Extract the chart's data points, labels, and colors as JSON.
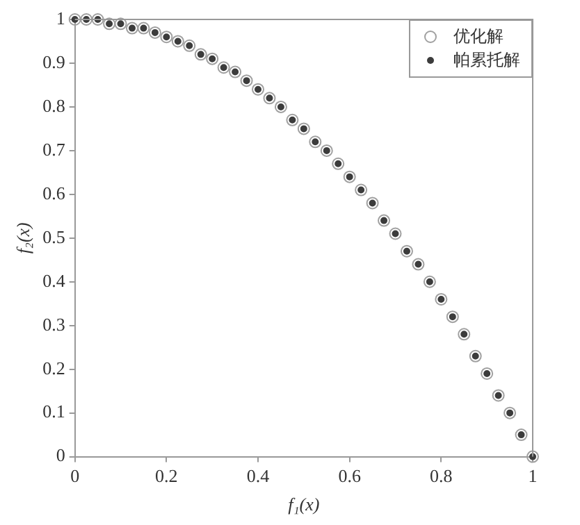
{
  "chart_data": {
    "type": "scatter",
    "xlabel": "f₁(x)",
    "ylabel": "f₂(x)",
    "x": [
      0,
      0.025,
      0.05,
      0.075,
      0.1,
      0.125,
      0.15,
      0.175,
      0.2,
      0.225,
      0.25,
      0.275,
      0.3,
      0.325,
      0.35,
      0.375,
      0.4,
      0.425,
      0.45,
      0.475,
      0.5,
      0.525,
      0.55,
      0.575,
      0.6,
      0.625,
      0.65,
      0.675,
      0.7,
      0.725,
      0.75,
      0.775,
      0.8,
      0.825,
      0.85,
      0.875,
      0.9,
      0.925,
      0.95,
      0.975,
      1
    ],
    "series": [
      {
        "name": "优化解",
        "color": "#a0a0a0",
        "marker": "circle",
        "values": [
          1,
          1,
          1,
          0.99,
          0.99,
          0.98,
          0.98,
          0.97,
          0.96,
          0.95,
          0.94,
          0.92,
          0.91,
          0.89,
          0.88,
          0.86,
          0.84,
          0.82,
          0.8,
          0.77,
          0.75,
          0.72,
          0.7,
          0.67,
          0.64,
          0.61,
          0.58,
          0.54,
          0.51,
          0.47,
          0.44,
          0.4,
          0.36,
          0.32,
          0.28,
          0.23,
          0.19,
          0.14,
          0.1,
          0.05,
          0
        ]
      },
      {
        "name": "帕累托解",
        "color": "#3c3c3c",
        "marker": "circle",
        "values": [
          1,
          1,
          1,
          0.99,
          0.99,
          0.98,
          0.98,
          0.97,
          0.96,
          0.95,
          0.94,
          0.92,
          0.91,
          0.89,
          0.88,
          0.86,
          0.84,
          0.82,
          0.8,
          0.77,
          0.75,
          0.72,
          0.7,
          0.67,
          0.64,
          0.61,
          0.58,
          0.54,
          0.51,
          0.47,
          0.44,
          0.4,
          0.36,
          0.32,
          0.28,
          0.23,
          0.19,
          0.14,
          0.1,
          0.05,
          0
        ]
      }
    ],
    "xlim": [
      0,
      1
    ],
    "xticks": [
      0,
      0.2,
      0.4,
      0.6,
      0.8,
      1
    ],
    "ylim": [
      0,
      1
    ],
    "yticks": [
      0,
      0.1,
      0.2,
      0.3,
      0.4,
      0.5,
      0.6,
      0.7,
      0.8,
      0.9,
      1
    ],
    "grid": false,
    "legend": "top right"
  }
}
